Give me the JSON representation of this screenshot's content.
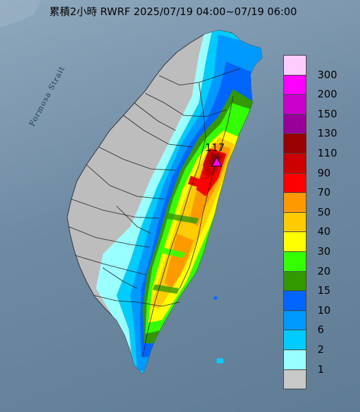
{
  "title": "累積2小時 RWRF 2025/07/19 04:00~07/19 06:00",
  "map": {
    "sea_label": "Formosa Strait",
    "max_value_label": "117",
    "max_marker_color": "#ff00ff",
    "land_color": "#bdbdbd",
    "sea_color": "#6f8ba3"
  },
  "legend": {
    "levels": [
      {
        "label": "300",
        "color": "#ffccff"
      },
      {
        "label": "200",
        "color": "#ff00ff"
      },
      {
        "label": "150",
        "color": "#cc00cc"
      },
      {
        "label": "130",
        "color": "#990099"
      },
      {
        "label": "110",
        "color": "#990000"
      },
      {
        "label": "90",
        "color": "#cc0000"
      },
      {
        "label": "70",
        "color": "#ff0000"
      },
      {
        "label": "50",
        "color": "#ff9900"
      },
      {
        "label": "40",
        "color": "#ffcc00"
      },
      {
        "label": "30",
        "color": "#ffff00"
      },
      {
        "label": "20",
        "color": "#33ff00"
      },
      {
        "label": "15",
        "color": "#339900"
      },
      {
        "label": "10",
        "color": "#0066ff"
      },
      {
        "label": "6",
        "color": "#0099ff"
      },
      {
        "label": "2",
        "color": "#00ccff"
      },
      {
        "label": "1",
        "color": "#99ffff"
      },
      {
        "label": "",
        "color": "#c8c8c8"
      }
    ]
  }
}
